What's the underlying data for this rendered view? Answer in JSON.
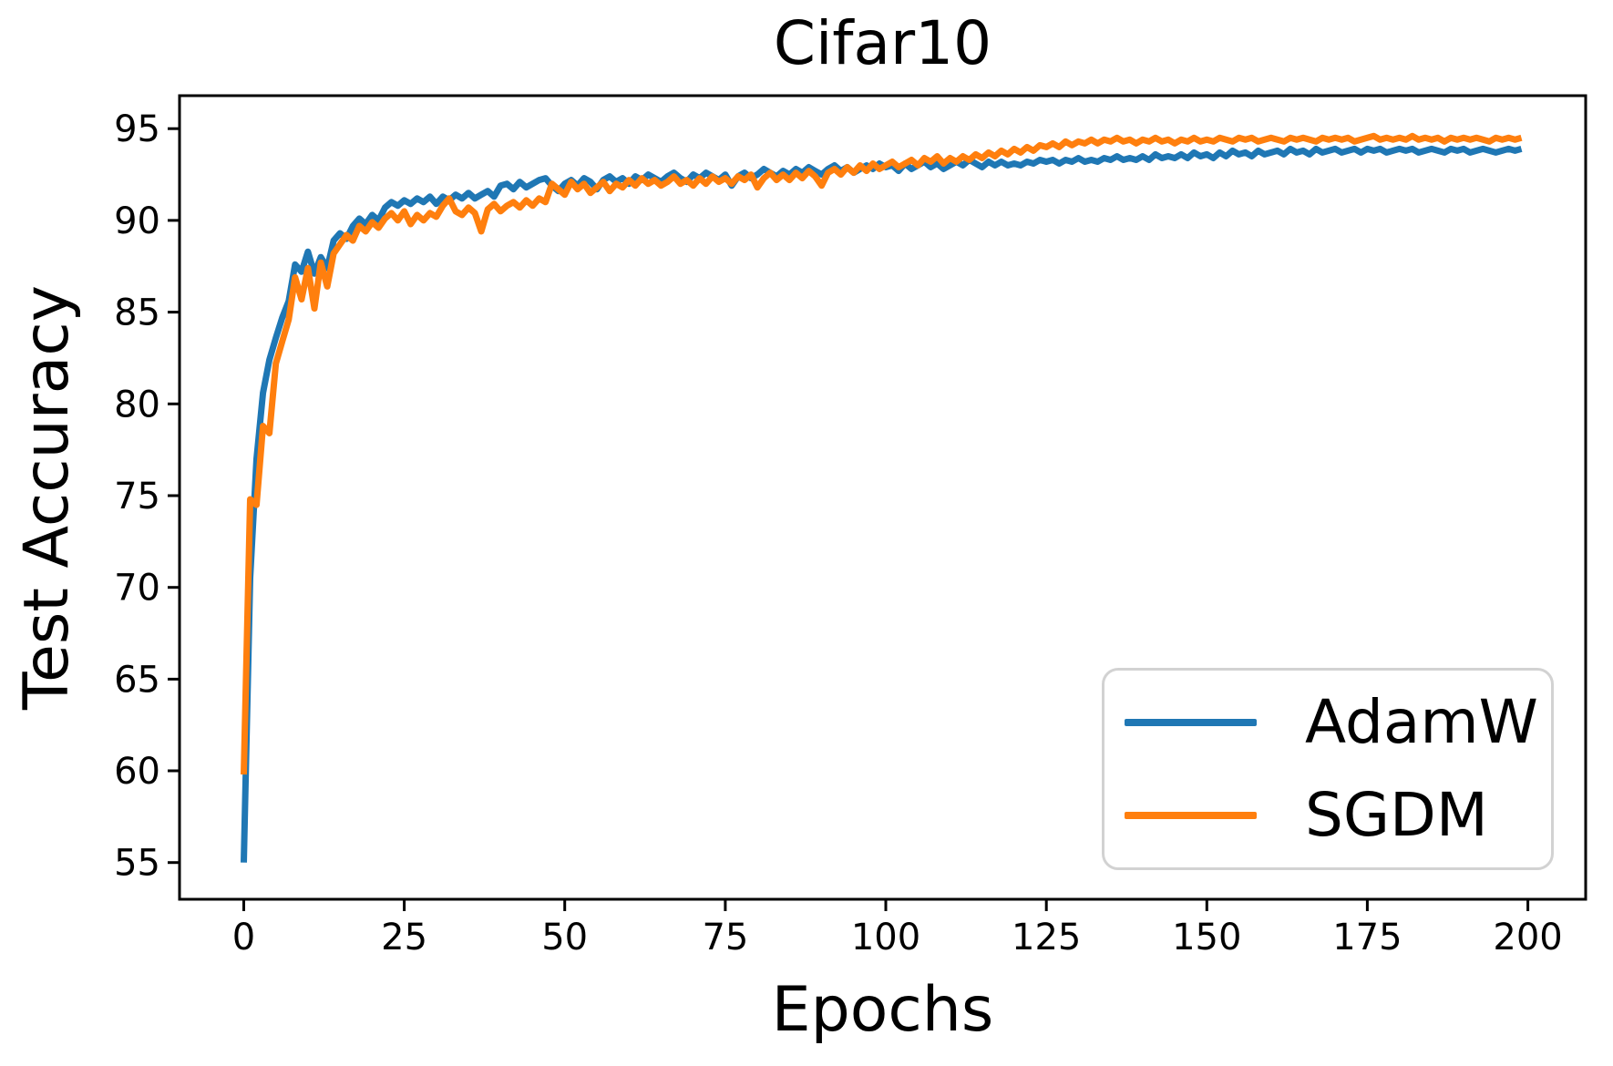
{
  "title": "Cifar10",
  "axes": {
    "x_label": "Epochs",
    "y_label": "Test Accuracy",
    "x_ticks": [
      0,
      25,
      50,
      75,
      100,
      125,
      150,
      175,
      200
    ],
    "y_ticks": [
      55,
      60,
      65,
      70,
      75,
      80,
      85,
      90,
      95
    ]
  },
  "legend": {
    "position": "lower right",
    "entries": [
      {
        "label": "AdamW",
        "color": "#1f77b4"
      },
      {
        "label": "SGDM",
        "color": "#ff7f0e"
      }
    ]
  },
  "chart_data": {
    "type": "line",
    "title": "Cifar10",
    "xlabel": "Epochs",
    "ylabel": "Test Accuracy",
    "xlim": [
      -10,
      209
    ],
    "ylim": [
      53.0,
      96.8
    ],
    "x_ticks": [
      0,
      25,
      50,
      75,
      100,
      125,
      150,
      175,
      200
    ],
    "y_ticks": [
      55,
      60,
      65,
      70,
      75,
      80,
      85,
      90,
      95
    ],
    "grid": false,
    "legend_position": "lower right",
    "x_start": 0,
    "x_step": 1,
    "x_range": [
      0,
      199
    ],
    "series": [
      {
        "name": "AdamW",
        "color": "#1f77b4",
        "values": [
          55.0,
          70.5,
          77.0,
          80.6,
          82.4,
          83.6,
          84.7,
          85.6,
          87.6,
          87.2,
          88.3,
          87.1,
          88.0,
          87.4,
          88.9,
          89.3,
          89.0,
          89.7,
          90.1,
          89.8,
          90.3,
          90.0,
          90.7,
          91.0,
          90.8,
          91.1,
          90.9,
          91.2,
          91.0,
          91.3,
          90.9,
          91.3,
          91.1,
          91.4,
          91.2,
          91.5,
          91.2,
          91.4,
          91.6,
          91.3,
          91.9,
          92.0,
          91.7,
          92.1,
          91.8,
          92.0,
          92.2,
          92.3,
          91.9,
          91.6,
          92.0,
          92.2,
          91.9,
          92.3,
          92.1,
          91.7,
          92.2,
          92.4,
          92.1,
          92.3,
          92.0,
          92.4,
          92.2,
          92.5,
          92.3,
          92.1,
          92.4,
          92.6,
          92.3,
          92.1,
          92.5,
          92.3,
          92.6,
          92.4,
          92.2,
          92.5,
          91.9,
          92.4,
          92.6,
          92.3,
          92.5,
          92.8,
          92.6,
          92.4,
          92.7,
          92.5,
          92.8,
          92.6,
          92.9,
          92.7,
          92.5,
          92.8,
          93.0,
          92.7,
          92.9,
          92.6,
          92.8,
          93.0,
          92.8,
          93.1,
          92.9,
          93.0,
          92.7,
          93.1,
          92.8,
          93.0,
          93.2,
          92.9,
          93.1,
          92.8,
          93.0,
          93.2,
          93.0,
          93.3,
          93.1,
          92.9,
          93.2,
          93.0,
          93.2,
          93.0,
          93.1,
          93.0,
          93.2,
          93.1,
          93.3,
          93.2,
          93.3,
          93.1,
          93.3,
          93.2,
          93.4,
          93.2,
          93.3,
          93.2,
          93.4,
          93.3,
          93.5,
          93.3,
          93.4,
          93.3,
          93.5,
          93.3,
          93.6,
          93.4,
          93.5,
          93.4,
          93.6,
          93.4,
          93.7,
          93.5,
          93.6,
          93.4,
          93.7,
          93.5,
          93.8,
          93.6,
          93.7,
          93.5,
          93.8,
          93.6,
          93.7,
          93.8,
          93.6,
          93.9,
          93.7,
          93.8,
          93.6,
          93.9,
          93.7,
          93.8,
          93.9,
          93.7,
          93.8,
          93.9,
          93.7,
          93.9,
          93.8,
          93.9,
          93.7,
          93.8,
          93.9,
          93.8,
          93.9,
          93.7,
          93.8,
          93.9,
          93.8,
          93.7,
          93.9,
          93.8,
          93.9,
          93.7,
          93.8,
          93.9,
          93.8,
          93.7,
          93.8,
          93.9,
          93.8,
          93.9
        ]
      },
      {
        "name": "SGDM",
        "color": "#ff7f0e",
        "values": [
          59.8,
          74.8,
          74.5,
          78.8,
          78.4,
          82.2,
          83.4,
          84.6,
          86.9,
          85.7,
          87.4,
          85.2,
          87.7,
          86.4,
          88.2,
          88.7,
          89.2,
          88.9,
          89.7,
          89.4,
          89.9,
          89.6,
          90.1,
          90.4,
          90.0,
          90.5,
          89.8,
          90.3,
          90.0,
          90.4,
          90.2,
          90.8,
          91.2,
          90.5,
          90.3,
          90.7,
          90.4,
          89.4,
          90.6,
          90.9,
          90.5,
          90.8,
          91.0,
          90.7,
          91.1,
          90.8,
          91.2,
          91.0,
          92.0,
          91.7,
          91.4,
          92.1,
          91.7,
          92.0,
          91.5,
          91.8,
          92.1,
          91.6,
          92.0,
          91.8,
          92.2,
          91.9,
          92.3,
          92.0,
          92.2,
          91.9,
          92.1,
          92.4,
          92.0,
          92.2,
          91.9,
          92.3,
          92.0,
          92.4,
          92.1,
          92.3,
          92.0,
          92.4,
          92.2,
          92.5,
          91.8,
          92.3,
          92.6,
          92.2,
          92.5,
          92.2,
          92.6,
          92.3,
          92.7,
          92.4,
          91.9,
          92.6,
          92.8,
          92.5,
          92.9,
          92.6,
          93.0,
          92.7,
          93.1,
          92.8,
          93.0,
          93.2,
          92.9,
          93.1,
          93.3,
          93.0,
          93.4,
          93.2,
          93.5,
          93.1,
          93.4,
          93.2,
          93.5,
          93.3,
          93.6,
          93.4,
          93.7,
          93.5,
          93.8,
          93.6,
          93.9,
          93.7,
          94.0,
          93.8,
          94.1,
          94.0,
          94.2,
          94.0,
          94.3,
          94.1,
          94.3,
          94.2,
          94.4,
          94.2,
          94.4,
          94.3,
          94.5,
          94.3,
          94.4,
          94.2,
          94.4,
          94.3,
          94.5,
          94.3,
          94.4,
          94.2,
          94.4,
          94.3,
          94.5,
          94.3,
          94.4,
          94.3,
          94.5,
          94.4,
          94.3,
          94.5,
          94.4,
          94.5,
          94.3,
          94.4,
          94.5,
          94.4,
          94.3,
          94.5,
          94.4,
          94.5,
          94.4,
          94.3,
          94.5,
          94.4,
          94.5,
          94.4,
          94.5,
          94.3,
          94.4,
          94.5,
          94.6,
          94.4,
          94.5,
          94.4,
          94.5,
          94.4,
          94.6,
          94.4,
          94.5,
          94.4,
          94.5,
          94.3,
          94.5,
          94.4,
          94.5,
          94.4,
          94.5,
          94.4,
          94.3,
          94.5,
          94.4,
          94.5,
          94.4,
          94.5
        ]
      }
    ]
  }
}
